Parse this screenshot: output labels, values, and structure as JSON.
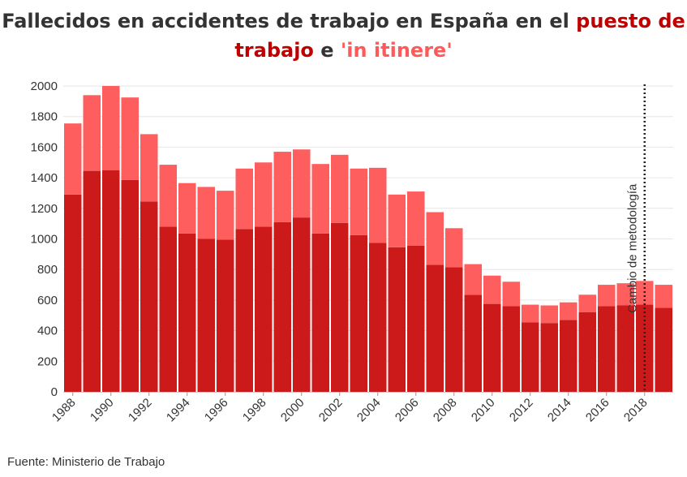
{
  "title": {
    "part1": "Fallecidos en accidentes de trabajo en España en el ",
    "highlight_work": "puesto de trabajo",
    "part2": " e ",
    "highlight_itinere": "'in itinere'"
  },
  "source": "Fuente: Ministerio de Trabajo",
  "annotation": "Cambio de metodología",
  "colors": {
    "work": "#cc1a1a",
    "itinere": "#ff5e5e",
    "text": "#333333",
    "grid": "#e6e6e6"
  },
  "chart_data": {
    "type": "bar",
    "stacked": true,
    "title": "Fallecidos en accidentes de trabajo en España en el puesto de trabajo e 'in itinere'",
    "xlabel": "",
    "ylabel": "",
    "ylim": [
      0,
      2000
    ],
    "yticks": [
      0,
      200,
      400,
      600,
      800,
      1000,
      1200,
      1400,
      1600,
      1800,
      2000
    ],
    "grid": true,
    "categories": [
      1988,
      1989,
      1990,
      1991,
      1992,
      1993,
      1994,
      1995,
      1996,
      1997,
      1998,
      1999,
      2000,
      2001,
      2002,
      2003,
      2004,
      2005,
      2006,
      2007,
      2008,
      2009,
      2010,
      2011,
      2012,
      2013,
      2014,
      2015,
      2016,
      2017,
      2018,
      2019
    ],
    "xtick_labels": [
      "1988",
      "1990",
      "1992",
      "1994",
      "1996",
      "1998",
      "2000",
      "2002",
      "2004",
      "2006",
      "2008",
      "2010",
      "2012",
      "2014",
      "2016",
      "2018"
    ],
    "series": [
      {
        "name": "puesto de trabajo",
        "values": [
          1290,
          1445,
          1450,
          1385,
          1245,
          1080,
          1035,
          1000,
          995,
          1065,
          1080,
          1110,
          1140,
          1035,
          1105,
          1025,
          975,
          945,
          955,
          830,
          815,
          635,
          575,
          560,
          455,
          450,
          470,
          520,
          560,
          565,
          570,
          550
        ]
      },
      {
        "name": "'in itinere'",
        "values": [
          465,
          495,
          550,
          540,
          440,
          405,
          330,
          340,
          320,
          395,
          420,
          460,
          445,
          455,
          445,
          435,
          490,
          345,
          355,
          345,
          255,
          200,
          185,
          160,
          115,
          115,
          115,
          115,
          140,
          145,
          155,
          150
        ]
      }
    ],
    "annotations": [
      {
        "text": "Cambio de metodología",
        "x": 2018,
        "style": "dotted-vertical-line"
      }
    ]
  }
}
